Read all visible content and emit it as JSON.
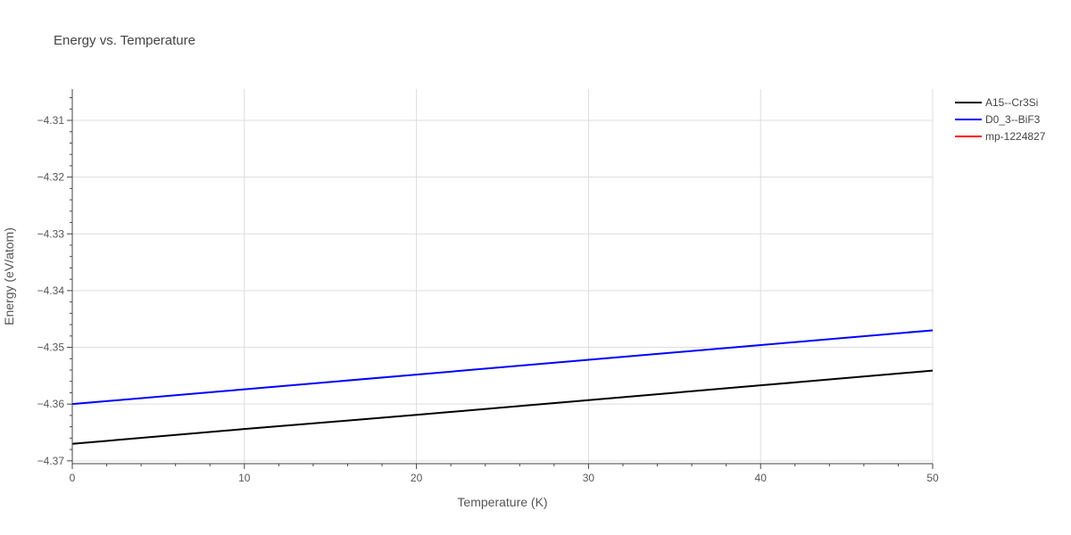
{
  "chart_data": {
    "type": "line",
    "title": "Energy vs. Temperature",
    "xlabel": "Temperature (K)",
    "ylabel": "Energy (eV/atom)",
    "xlim": [
      0,
      50
    ],
    "ylim": [
      -4.3705,
      -4.3045
    ],
    "x_ticks": [
      0,
      10,
      20,
      30,
      40,
      50
    ],
    "x_tick_labels": [
      "0",
      "10",
      "20",
      "30",
      "40",
      "50"
    ],
    "y_ticks": [
      -4.37,
      -4.36,
      -4.35,
      -4.34,
      -4.33,
      -4.32,
      -4.31
    ],
    "y_tick_labels": [
      "−4.37",
      "−4.36",
      "−4.35",
      "−4.34",
      "−4.33",
      "−4.32",
      "−4.31"
    ],
    "grid": true,
    "legend_position": "top-right",
    "series": [
      {
        "name": "A15--Cr3Si",
        "color": "#000000",
        "x": [
          0,
          10,
          20,
          30,
          40,
          50
        ],
        "y": [
          -4.367,
          -4.3644,
          -4.3619,
          -4.3593,
          -4.3567,
          -4.3541
        ]
      },
      {
        "name": "D0_3--BiF3",
        "color": "#0000ff",
        "x": [
          0,
          10,
          20,
          30,
          40,
          50
        ],
        "y": [
          -4.36,
          -4.3574,
          -4.3548,
          -4.3522,
          -4.3496,
          -4.347
        ]
      },
      {
        "name": "mp-1224827",
        "color": "#ff0000",
        "x": [],
        "y": []
      }
    ]
  }
}
